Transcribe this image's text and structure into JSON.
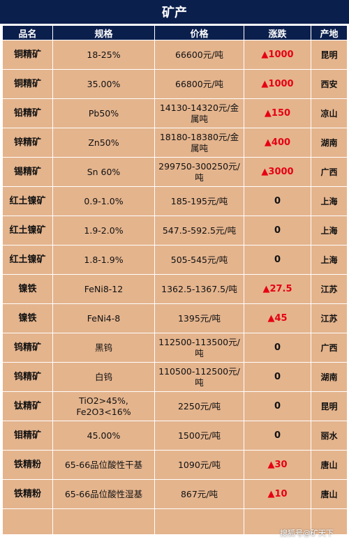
{
  "title": "矿产",
  "headers": [
    "品名",
    "规格",
    "价格",
    "涨跌",
    "产地"
  ],
  "rows": [
    {
      "name": "铜精矿",
      "spec": "18-25%",
      "price": "66600元/吨",
      "change": "▲1000",
      "up": true,
      "place": "昆明"
    },
    {
      "name": "铜精矿",
      "spec": "35.00%",
      "price": "66800元/吨",
      "change": "▲1000",
      "up": true,
      "place": "西安"
    },
    {
      "name": "铅精矿",
      "spec": "Pb50%",
      "price": "14130-14320元/金属吨",
      "change": "▲150",
      "up": true,
      "place": "凉山"
    },
    {
      "name": "锌精矿",
      "spec": "Zn50%",
      "price": "18180-18380元/金属吨",
      "change": "▲400",
      "up": true,
      "place": "湖南"
    },
    {
      "name": "锡精矿",
      "spec": "Sn 60%",
      "price": "299750-300250元/吨",
      "change": "▲3000",
      "up": true,
      "place": "广西"
    },
    {
      "name": "红土镍矿",
      "spec": "0.9-1.0%",
      "price": "185-195元/吨",
      "change": "0",
      "up": false,
      "place": "上海"
    },
    {
      "name": "红土镍矿",
      "spec": "1.9-2.0%",
      "price": "547.5-592.5元/吨",
      "change": "0",
      "up": false,
      "place": "上海"
    },
    {
      "name": "红土镍矿",
      "spec": "1.8-1.9%",
      "price": "505-545元/吨",
      "change": "0",
      "up": false,
      "place": "上海"
    },
    {
      "name": "镍铁",
      "spec": "FeNi8-12",
      "price": "1362.5-1367.5/吨",
      "change": "▲27.5",
      "up": true,
      "place": "江苏"
    },
    {
      "name": "镍铁",
      "spec": "FeNi4-8",
      "price": "1395元/吨",
      "change": "▲45",
      "up": true,
      "place": "江苏"
    },
    {
      "name": "钨精矿",
      "spec": "黑钨",
      "price": "112500-113500元/吨",
      "change": "0",
      "up": false,
      "place": "广西"
    },
    {
      "name": "钨精矿",
      "spec": "白钨",
      "price": "110500-112500元/吨",
      "change": "0",
      "up": false,
      "place": "湖南"
    },
    {
      "name": "钛精矿",
      "spec": "TiO2>45%, Fe2O3<16%",
      "price": "2250元/吨",
      "change": "0",
      "up": false,
      "place": "昆明"
    },
    {
      "name": "钼精矿",
      "spec": "45.00%",
      "price": "1500元/吨",
      "change": "0",
      "up": false,
      "place": "丽水"
    },
    {
      "name": "铁精粉",
      "spec": "65-66品位酸性干基",
      "price": "1090元/吨",
      "change": "▲30",
      "up": true,
      "place": "唐山"
    },
    {
      "name": "铁精粉",
      "spec": "65-66品位酸性湿基",
      "price": "867元/吨",
      "change": "▲10",
      "up": true,
      "place": "唐山"
    }
  ],
  "watermark": "搜狐号@矿天下",
  "colors": {
    "header_bg": "#0b1f4d",
    "cell_bg": "#e4b48d",
    "up_color": "#e60012"
  }
}
